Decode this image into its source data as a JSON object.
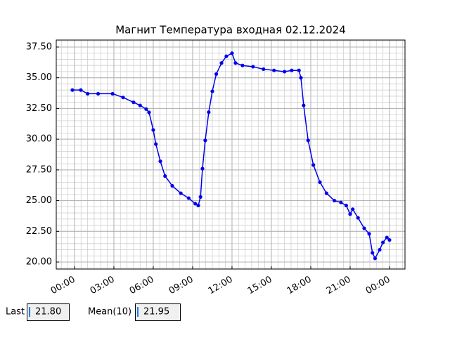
{
  "chart_data": {
    "type": "line",
    "title": "Магнит Температура входная 02.12.2024",
    "x": [
      -0.16,
      0.48,
      1.0,
      1.8,
      2.9,
      3.7,
      4.5,
      5.0,
      5.46,
      5.68,
      6.0,
      6.2,
      6.54,
      6.9,
      7.45,
      8.1,
      8.7,
      9.2,
      9.43,
      9.6,
      9.75,
      9.96,
      10.23,
      10.5,
      10.8,
      11.2,
      11.57,
      12.0,
      12.27,
      12.8,
      13.6,
      14.4,
      15.2,
      16.0,
      16.55,
      17.1,
      17.25,
      17.46,
      17.8,
      18.2,
      18.7,
      19.2,
      19.8,
      20.3,
      20.7,
      21.0,
      21.2,
      21.6,
      22.07,
      22.45,
      22.7,
      22.9,
      23.25,
      23.5,
      23.8,
      24.0
    ],
    "series": [
      {
        "color": "#0000ee",
        "values": [
          34.0,
          34.0,
          33.7,
          33.7,
          33.7,
          33.4,
          33.0,
          32.75,
          32.45,
          32.18,
          30.75,
          29.6,
          28.2,
          27.0,
          26.2,
          25.6,
          25.2,
          24.75,
          24.6,
          25.3,
          27.6,
          29.9,
          32.2,
          33.9,
          35.3,
          36.2,
          36.75,
          37.0,
          36.2,
          36.0,
          35.9,
          35.7,
          35.6,
          35.5,
          35.6,
          35.6,
          35.0,
          32.75,
          29.9,
          27.9,
          26.5,
          25.6,
          25.0,
          24.85,
          24.6,
          23.9,
          24.3,
          23.6,
          22.75,
          22.3,
          20.75,
          20.3,
          21.0,
          21.6,
          22.0,
          21.8
        ]
      }
    ],
    "xlim": [
      -1.39,
      25.18
    ],
    "xticks": [
      {
        "value": 0,
        "label": "00:00"
      },
      {
        "value": 3,
        "label": "03:00"
      },
      {
        "value": 6,
        "label": "06:00"
      },
      {
        "value": 9,
        "label": "09:00"
      },
      {
        "value": 12,
        "label": "12:00"
      },
      {
        "value": 15,
        "label": "15:00"
      },
      {
        "value": 18,
        "label": "18:00"
      },
      {
        "value": 21,
        "label": "21:00"
      },
      {
        "value": 24,
        "label": "00:00"
      }
    ],
    "ylim": [
      19.43,
      38.07
    ],
    "yticks": [
      {
        "value": 20,
        "label": "20.00"
      },
      {
        "value": 22.5,
        "label": "22.50"
      },
      {
        "value": 25,
        "label": "25.00"
      },
      {
        "value": 27.5,
        "label": "27.50"
      },
      {
        "value": 30,
        "label": "30.00"
      },
      {
        "value": 32.5,
        "label": "32.50"
      },
      {
        "value": 35,
        "label": "35.00"
      },
      {
        "value": 37.5,
        "label": "37.50"
      }
    ],
    "grid": true,
    "markers": true
  },
  "footer": {
    "last_label": "Last",
    "last_value": "21.80",
    "mean_label": "Mean(10)",
    "mean_value": "21.95"
  }
}
